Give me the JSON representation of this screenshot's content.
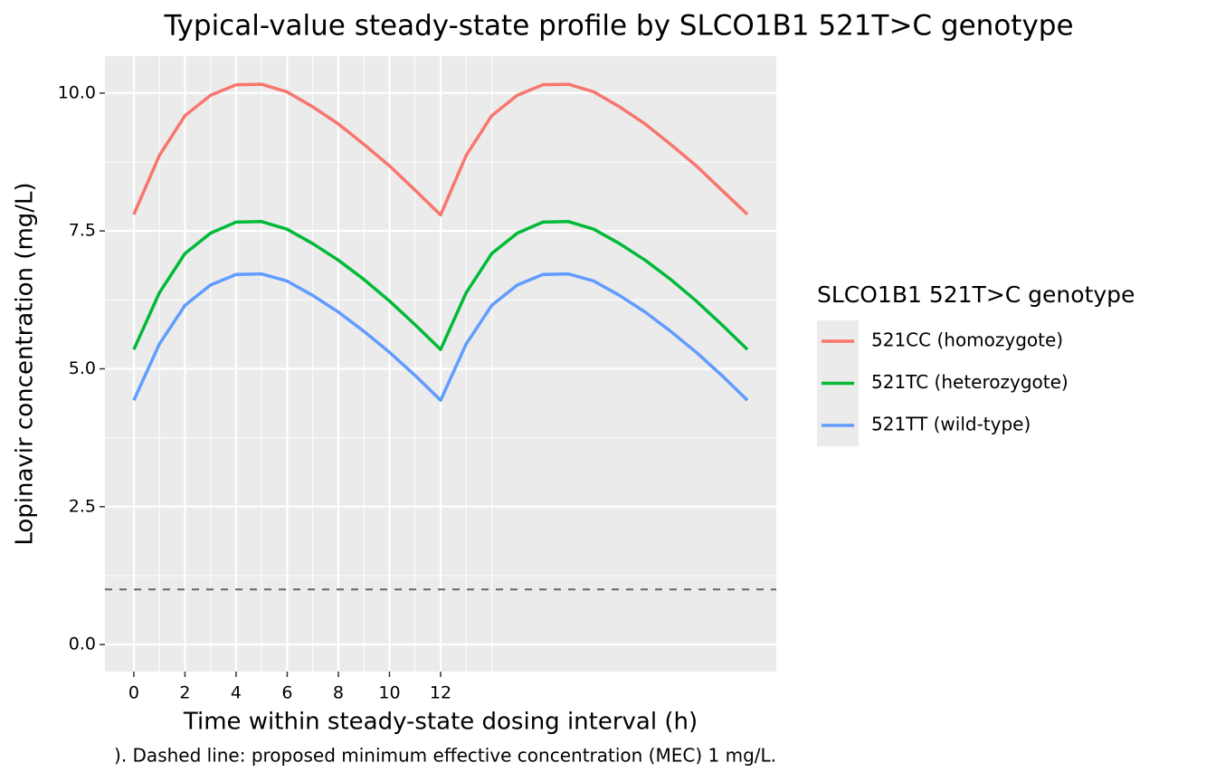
{
  "chart_data": {
    "type": "line",
    "title": "Typical-value steady-state profile by SLCO1B1 521T>C genotype",
    "x_label": "Time within steady-state dosing interval (h)",
    "y_label": "Lopinavir concentration (mg/L)",
    "caption": "). Dashed line: proposed minimum effective concentration (MEC) 1 mg/L.",
    "legend_title": "SLCO1B1 521T>C genotype",
    "legend_position": "right",
    "grid": true,
    "x": [
      0,
      1,
      2,
      3,
      4,
      5,
      6,
      7,
      8,
      9,
      10,
      11,
      12,
      13,
      14,
      15,
      16,
      17,
      18,
      19,
      20,
      21,
      22,
      23,
      24
    ],
    "series": [
      {
        "name": "521CC (homozygote)",
        "color": "#F8766D",
        "values": [
          7.8,
          8.87,
          9.59,
          9.96,
          10.15,
          10.16,
          10.02,
          9.75,
          9.44,
          9.07,
          8.68,
          8.24,
          7.79,
          8.87,
          9.59,
          9.96,
          10.15,
          10.16,
          10.02,
          9.75,
          9.44,
          9.07,
          8.68,
          8.24,
          7.8
        ]
      },
      {
        "name": "521TC (heterozygote)",
        "color": "#00BA38",
        "values": [
          5.35,
          6.38,
          7.09,
          7.46,
          7.66,
          7.67,
          7.53,
          7.27,
          6.97,
          6.62,
          6.23,
          5.8,
          5.35,
          6.38,
          7.09,
          7.46,
          7.66,
          7.67,
          7.53,
          7.27,
          6.97,
          6.62,
          6.23,
          5.8,
          5.35
        ]
      },
      {
        "name": "521TT (wild-type)",
        "color": "#619CFF",
        "values": [
          4.43,
          5.45,
          6.15,
          6.52,
          6.71,
          6.72,
          6.59,
          6.33,
          6.03,
          5.68,
          5.3,
          4.88,
          4.43,
          5.45,
          6.15,
          6.52,
          6.71,
          6.72,
          6.59,
          6.33,
          6.03,
          5.68,
          5.3,
          4.88,
          4.43
        ]
      }
    ],
    "reference_line": {
      "y": 1,
      "color": "#666666",
      "dashed": true
    },
    "xlim": [
      -1.13,
      25.13
    ],
    "xticks": [
      0,
      2,
      4,
      6,
      8,
      10,
      12
    ],
    "xminor": [
      1,
      3,
      5,
      7,
      9,
      11,
      13,
      14
    ],
    "ylim": [
      -0.49,
      10.67
    ],
    "yticks": [
      {
        "value": 0,
        "label": "0.0"
      },
      {
        "value": 2.5,
        "label": "2.5"
      },
      {
        "value": 5,
        "label": "5.0"
      },
      {
        "value": 7.5,
        "label": "7.5"
      },
      {
        "value": 10,
        "label": "10.0"
      }
    ],
    "yminor": [
      1.25,
      3.75,
      6.25,
      8.75
    ]
  }
}
